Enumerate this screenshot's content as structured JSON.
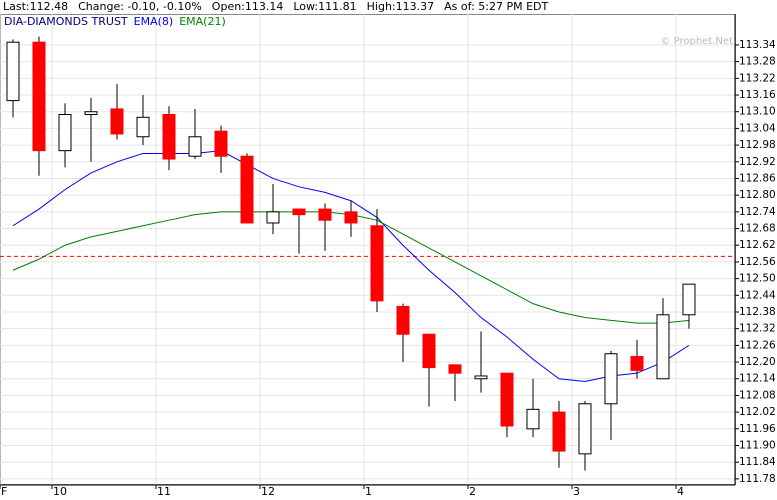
{
  "header": {
    "items": [
      "Last:112.48",
      "Change: -0.10, -0.10%",
      "Open:113.14",
      "Low:111.81",
      "High:113.37",
      "As of: 5:27 PM EDT"
    ]
  },
  "chart_data": {
    "type": "candlestick",
    "watermark": "© Prophet.Net",
    "series": [
      {
        "name": "DIA-DIAMONDS TRUST",
        "color": "#000080",
        "up_color": "#ffffff",
        "down_color": "#ff0000",
        "open": [
          113.14,
          113.35,
          112.96,
          113.09,
          113.11,
          113.01,
          113.09,
          112.94,
          113.03,
          112.94,
          112.7,
          112.75,
          112.75,
          112.74,
          112.69,
          112.4,
          112.3,
          112.19,
          112.14,
          112.16,
          111.96,
          112.02,
          111.87,
          112.05,
          112.22,
          112.14,
          112.37
        ],
        "high": [
          113.36,
          113.37,
          113.13,
          113.15,
          113.2,
          113.16,
          113.12,
          113.11,
          113.05,
          112.95,
          112.84,
          112.75,
          112.77,
          112.78,
          112.75,
          112.41,
          112.3,
          112.19,
          112.31,
          112.16,
          112.14,
          112.06,
          112.06,
          112.24,
          112.28,
          112.43,
          112.48
        ],
        "low": [
          113.08,
          112.87,
          112.9,
          112.92,
          113.0,
          112.98,
          112.89,
          112.93,
          112.88,
          112.7,
          112.66,
          112.59,
          112.6,
          112.65,
          112.38,
          112.2,
          112.04,
          112.06,
          112.09,
          111.93,
          111.93,
          111.82,
          111.81,
          111.92,
          112.14,
          112.14,
          112.32
        ],
        "close": [
          113.35,
          112.96,
          113.09,
          113.1,
          113.02,
          113.08,
          112.93,
          113.01,
          112.94,
          112.7,
          112.74,
          112.73,
          112.71,
          112.7,
          112.42,
          112.3,
          112.18,
          112.16,
          112.15,
          111.97,
          112.03,
          111.88,
          112.05,
          112.23,
          112.17,
          112.37,
          112.48
        ]
      }
    ],
    "overlays": [
      {
        "name": "EMA(8)",
        "color": "#0000ff",
        "values": [
          112.69,
          112.75,
          112.82,
          112.88,
          112.92,
          112.95,
          112.95,
          112.95,
          112.96,
          112.91,
          112.86,
          112.83,
          112.81,
          112.78,
          112.72,
          112.62,
          112.53,
          112.45,
          112.36,
          112.29,
          112.21,
          112.14,
          112.13,
          112.15,
          112.16,
          112.2,
          112.26
        ]
      },
      {
        "name": "EMA(21)",
        "color": "#008000",
        "values": [
          112.53,
          112.57,
          112.62,
          112.65,
          112.67,
          112.69,
          112.71,
          112.73,
          112.74,
          112.74,
          112.74,
          112.74,
          112.74,
          112.73,
          112.71,
          112.66,
          112.61,
          112.56,
          112.51,
          112.46,
          112.41,
          112.38,
          112.36,
          112.35,
          112.34,
          112.34,
          112.35
        ]
      }
    ],
    "reference_line": {
      "value": 112.58,
      "color": "#ff0000"
    },
    "xlim": [
      -0.5,
      27.77
    ],
    "xticks": [
      {
        "value": -0.5,
        "label": "F"
      },
      {
        "value": 1.5,
        "label": "10"
      },
      {
        "value": 5.5,
        "label": "11"
      },
      {
        "value": 9.5,
        "label": "12"
      },
      {
        "value": 13.5,
        "label": "1"
      },
      {
        "value": 17.5,
        "label": "2"
      },
      {
        "value": 21.5,
        "label": "3"
      },
      {
        "value": 25.5,
        "label": "4"
      }
    ],
    "ylim": [
      111.758,
      113.383
    ],
    "yticks": [
      113.34,
      113.28,
      113.22,
      113.16,
      {
        "value": 113.1,
        "label": "113.10"
      },
      113.04,
      112.98,
      112.92,
      112.86,
      {
        "value": 112.8,
        "label": "112.80"
      },
      112.74,
      112.68,
      112.62,
      112.56,
      {
        "value": 112.5,
        "label": "112.50"
      },
      112.44,
      112.38,
      112.32,
      112.26,
      {
        "value": 112.2,
        "label": "112.20"
      },
      112.14,
      112.08,
      112.02,
      111.96,
      {
        "value": 111.9,
        "label": "111.90"
      },
      111.84,
      111.78
    ],
    "grid": true
  }
}
